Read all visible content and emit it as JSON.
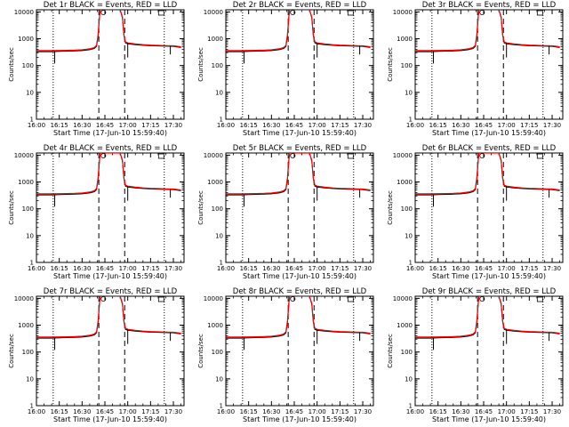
{
  "figure": {
    "panels": [
      {
        "title": "Det 1r BLACK = Events, RED = LLD"
      },
      {
        "title": "Det 2r BLACK = Events, RED = LLD"
      },
      {
        "title": "Det 3r BLACK = Events, RED = LLD"
      },
      {
        "title": "Det 4r BLACK = Events, RED = LLD"
      },
      {
        "title": "Det 5r BLACK = Events, RED = LLD"
      },
      {
        "title": "Det 6r BLACK = Events, RED = LLD"
      },
      {
        "title": "Det 7r BLACK = Events, RED = LLD"
      },
      {
        "title": "Det 8r BLACK = Events, RED = LLD"
      },
      {
        "title": "Det 9r BLACK = Events, RED = LLD"
      }
    ]
  },
  "chart_data": {
    "type": "line",
    "layout": "3x3 small multiples",
    "xlabel": "Start Time (17-Jun-10 15:59:40)",
    "ylabel": "Counts/sec",
    "x_tick_labels": [
      "16:00",
      "16:15",
      "16:30",
      "16:45",
      "17:00",
      "17:15",
      "17:30"
    ],
    "x_tick_minutes": [
      0,
      15,
      30,
      45,
      60,
      75,
      90
    ],
    "xlim_minutes": [
      0,
      97
    ],
    "yscale": "log",
    "ylim": [
      1,
      12000
    ],
    "y_tick_labels": [
      "1",
      "10",
      "100",
      "1000",
      "10000"
    ],
    "y_tick_values": [
      1,
      10,
      100,
      1000,
      10000
    ],
    "vertical_markers": [
      {
        "style": "dotted",
        "minute": 11
      },
      {
        "style": "dashed",
        "minute": 41
      },
      {
        "style": "dashed",
        "minute": 58
      },
      {
        "style": "dotted",
        "minute": 84
      }
    ],
    "series": [
      {
        "name": "Events",
        "color": "#000000",
        "x": [
          0,
          5,
          10,
          15,
          20,
          25,
          30,
          35,
          38,
          39.5,
          40.5,
          41.5,
          42,
          55,
          56.5,
          57.5,
          58.5,
          60,
          65,
          70,
          75,
          80,
          85,
          90,
          95
        ],
        "y": [
          330,
          330,
          330,
          340,
          345,
          350,
          360,
          390,
          430,
          520,
          1200,
          7000,
          12000,
          12000,
          6000,
          1300,
          700,
          650,
          600,
          570,
          550,
          540,
          530,
          520,
          470
        ]
      },
      {
        "name": "LLD",
        "color": "#ff0000",
        "x": [
          0,
          5,
          10,
          15,
          20,
          25,
          30,
          35,
          38,
          39.5,
          40.5,
          41.5,
          42,
          55,
          56.5,
          57.5,
          58.5,
          60,
          65,
          70,
          75,
          80,
          85,
          90,
          95
        ],
        "y": [
          360,
          360,
          360,
          365,
          370,
          375,
          385,
          420,
          470,
          560,
          1400,
          7500,
          12000,
          12000,
          6500,
          1400,
          760,
          700,
          640,
          600,
          580,
          565,
          555,
          545,
          500
        ]
      }
    ],
    "glitches": [
      {
        "minute": 12,
        "low": 120
      },
      {
        "minute": 60,
        "low": 200
      },
      {
        "minute": 88,
        "low": 260
      }
    ],
    "annotations": [
      "small circle near 16:44 at ~10000",
      "small square marker at ~17:23 near top"
    ]
  }
}
